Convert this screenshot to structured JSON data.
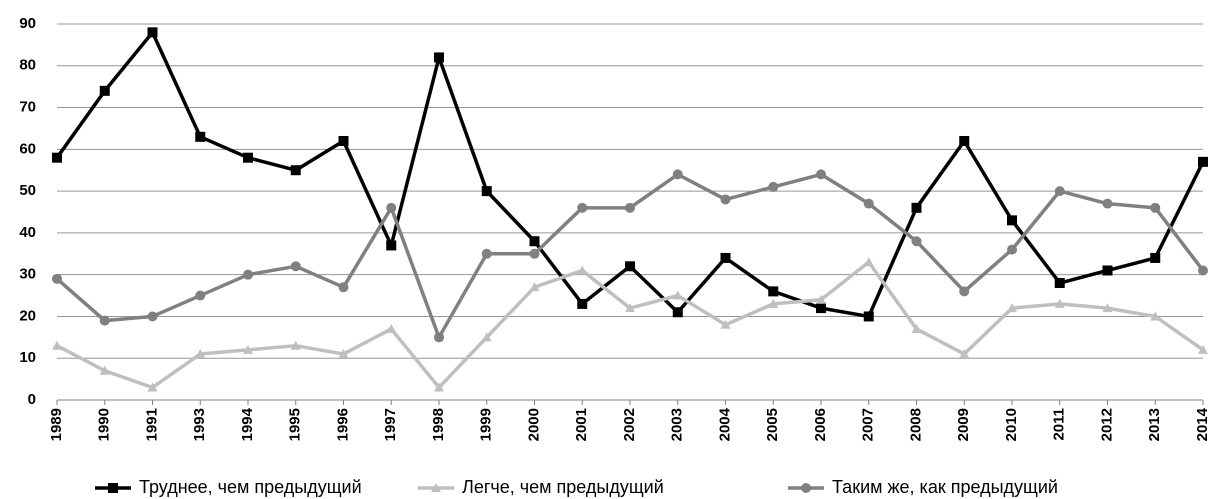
{
  "chart_data": {
    "type": "line",
    "categories": [
      "1989",
      "1990",
      "1991",
      "1993",
      "1994",
      "1995",
      "1996",
      "1997",
      "1998",
      "1999",
      "2000",
      "2001",
      "2002",
      "2003",
      "2004",
      "2005",
      "2006",
      "2007",
      "2008",
      "2009",
      "2010",
      "2011",
      "2012",
      "2013",
      "2014"
    ],
    "series": [
      {
        "name": "Труднее, чем предыдущий",
        "color": "#000000",
        "marker": "square",
        "values": [
          58,
          74,
          88,
          63,
          58,
          55,
          62,
          37,
          82,
          50,
          38,
          23,
          32,
          21,
          34,
          26,
          22,
          20,
          46,
          62,
          43,
          28,
          31,
          34,
          57
        ]
      },
      {
        "name": "Легче, чем предыдущий",
        "color": "#bfbfbf",
        "marker": "triangle",
        "values": [
          13,
          7,
          3,
          11,
          12,
          13,
          11,
          17,
          3,
          15,
          27,
          31,
          22,
          25,
          18,
          23,
          24,
          33,
          17,
          11,
          22,
          23,
          22,
          20,
          12
        ]
      },
      {
        "name": "Таким же, как предыдущий",
        "color": "#808080",
        "marker": "circle",
        "values": [
          29,
          19,
          20,
          25,
          30,
          32,
          27,
          46,
          15,
          35,
          35,
          46,
          46,
          54,
          48,
          51,
          54,
          47,
          38,
          26,
          36,
          50,
          47,
          46,
          31
        ]
      }
    ],
    "ylim": [
      0,
      90
    ],
    "yticks": [
      0,
      10,
      20,
      30,
      40,
      50,
      60,
      70,
      80,
      90
    ],
    "grid": true,
    "legend": "bottom"
  }
}
